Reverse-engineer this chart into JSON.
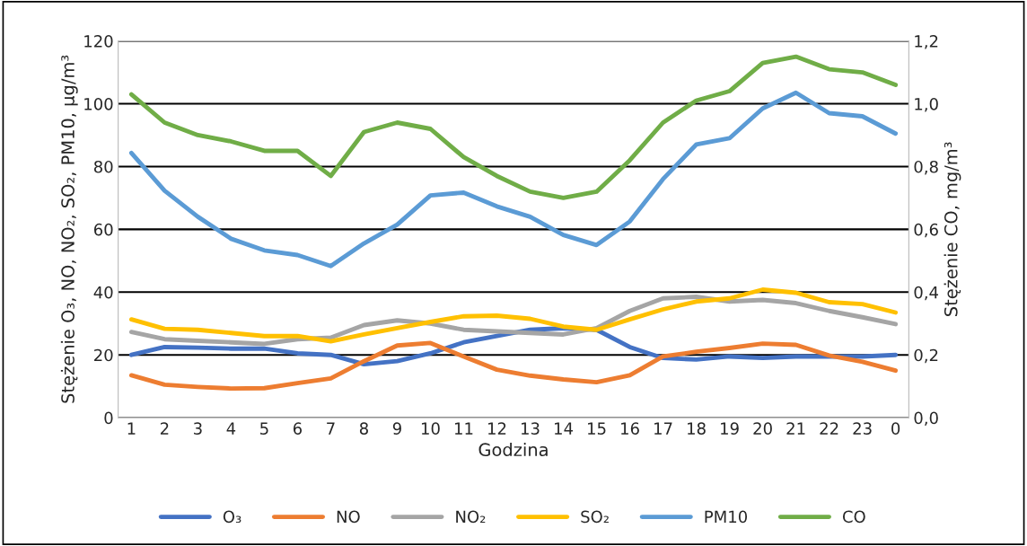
{
  "chart_data": {
    "type": "line",
    "xlabel": "Godzina",
    "ylabel": "Stężenie O₃, NO, NO₂, SO₂, PM10, µg/m³",
    "y2label": "Stężenie CO, mg/m³",
    "categories": [
      "1",
      "2",
      "3",
      "4",
      "5",
      "6",
      "7",
      "8",
      "9",
      "10",
      "11",
      "12",
      "13",
      "14",
      "15",
      "16",
      "17",
      "18",
      "19",
      "20",
      "21",
      "22",
      "23",
      "0"
    ],
    "ylim": [
      0,
      120
    ],
    "yticks": [
      0,
      20,
      40,
      60,
      80,
      100,
      120
    ],
    "y2lim": [
      0,
      1.2
    ],
    "y2ticks": [
      {
        "value": 0,
        "label": "0,0"
      },
      {
        "value": 0.2,
        "label": "0,2"
      },
      {
        "value": 0.4,
        "label": "0,4"
      },
      {
        "value": 0.6,
        "label": "0,6"
      },
      {
        "value": 0.8,
        "label": "0,8"
      },
      {
        "value": 1.0,
        "label": "1,0"
      },
      {
        "value": 1.2,
        "label": "1,2"
      }
    ],
    "grid": "y",
    "legend": "bottom",
    "marker": "none",
    "line_style": "solid",
    "series": [
      {
        "name": "O₃",
        "color": "#4472c4",
        "values": [
          20,
          22.5,
          22.3,
          22,
          22,
          20.5,
          20,
          17,
          18,
          20.5,
          24,
          26,
          28,
          28.5,
          28,
          22.5,
          19,
          18.5,
          19.5,
          19,
          19.5,
          19.5,
          19.5,
          20
        ]
      },
      {
        "name": "NO",
        "color": "#ed7d31",
        "values": [
          13.5,
          10.5,
          9.8,
          9.3,
          9.4,
          11,
          12.5,
          18,
          23,
          23.8,
          19.5,
          15.3,
          13.4,
          12.2,
          11.3,
          13.5,
          19.5,
          21,
          22.2,
          23.6,
          23.2,
          19.8,
          17.8,
          15
        ]
      },
      {
        "name": "NO₂",
        "color": "#a5a5a5",
        "values": [
          27.3,
          25,
          24.5,
          24,
          23.5,
          25,
          25.5,
          29.5,
          31,
          30,
          28,
          27.5,
          27,
          26.5,
          28.5,
          34,
          38,
          38.5,
          37,
          37.5,
          36.5,
          34,
          32,
          29.8
        ]
      },
      {
        "name": "SO₂",
        "color": "#ffc000",
        "values": [
          31.3,
          28.3,
          28,
          27,
          26,
          26,
          24.3,
          26.5,
          28.5,
          30.5,
          32.3,
          32.5,
          31.5,
          29,
          28,
          31.3,
          34.5,
          37,
          38,
          40.8,
          39.8,
          36.8,
          36.2,
          33.5
        ]
      },
      {
        "name": "PM10",
        "color": "#5b9bd5",
        "values": [
          84.3,
          72.3,
          64,
          57,
          53.3,
          51.8,
          48.3,
          55.5,
          61.5,
          70.8,
          71.7,
          67.3,
          64,
          58.2,
          55,
          62.5,
          76,
          87,
          89,
          98.5,
          103.5,
          97,
          96,
          90.5
        ]
      },
      {
        "name": "CO",
        "color": "#70ad47",
        "axis": "y2",
        "values": [
          1.03,
          0.94,
          0.9,
          0.88,
          0.85,
          0.85,
          0.77,
          0.91,
          0.94,
          0.92,
          0.83,
          0.77,
          0.72,
          0.7,
          0.72,
          0.82,
          0.94,
          1.01,
          1.04,
          1.13,
          1.15,
          1.11,
          1.1,
          1.06
        ]
      }
    ]
  }
}
